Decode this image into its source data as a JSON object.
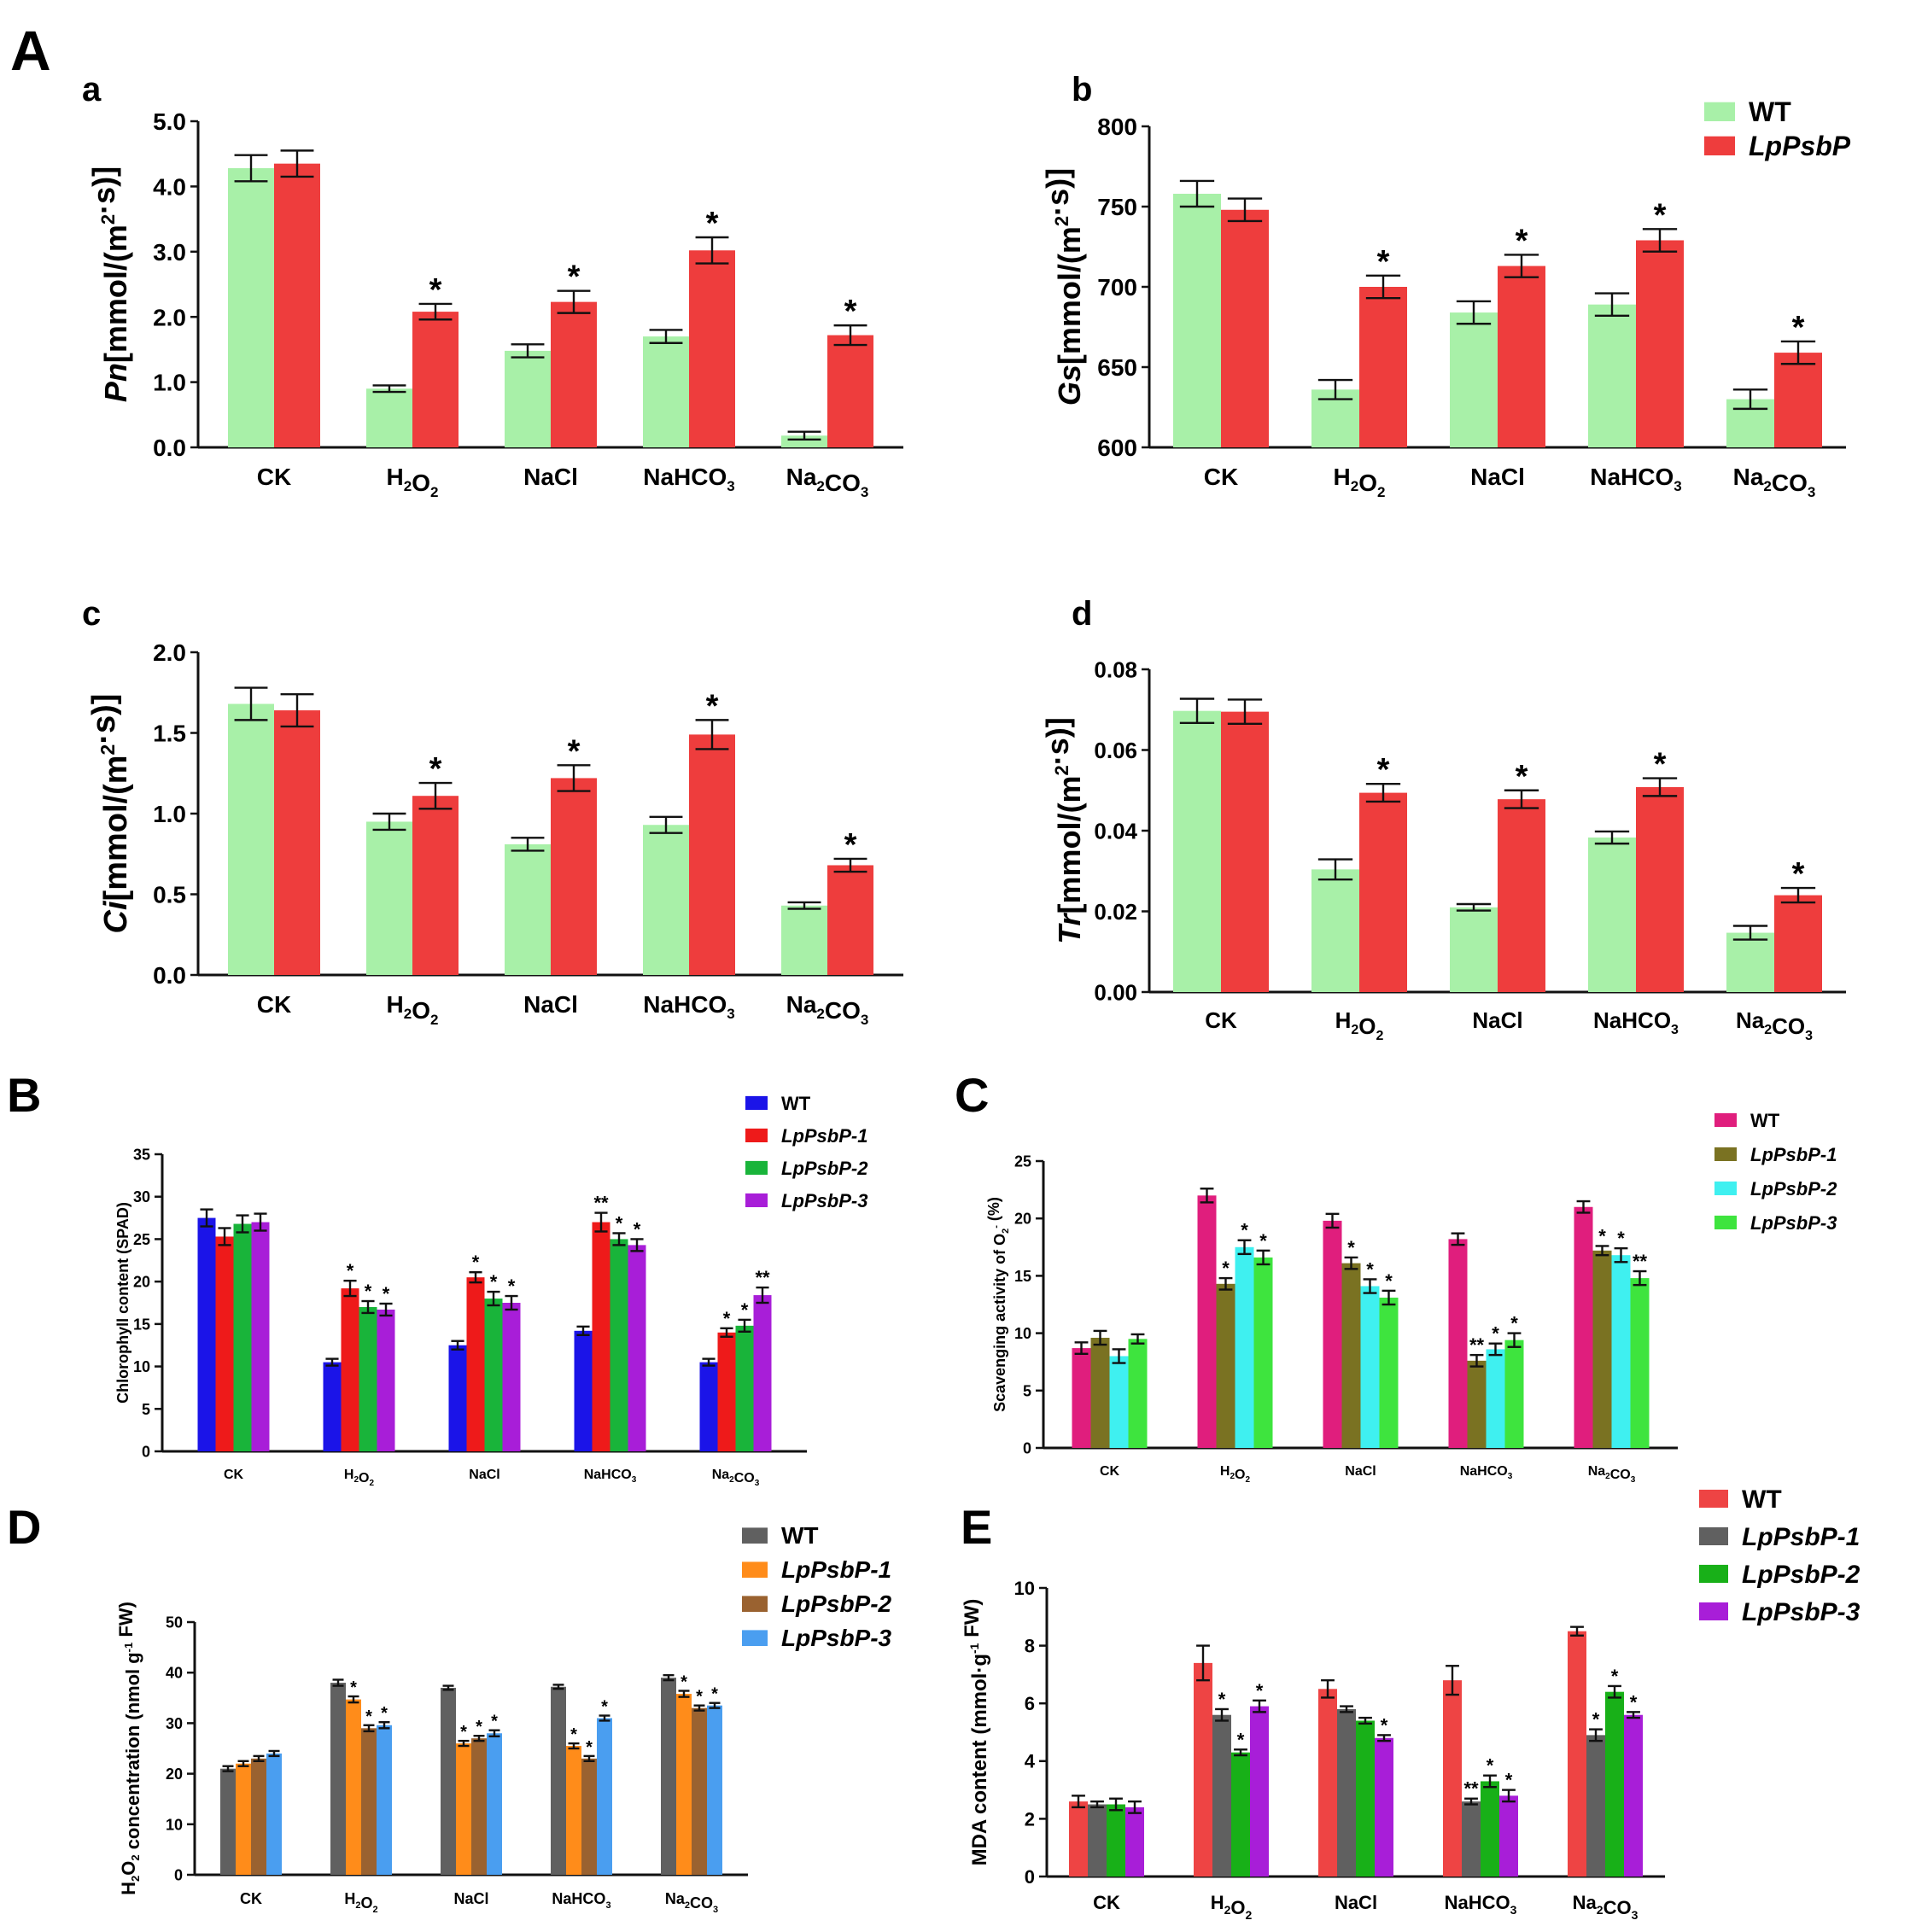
{
  "figure": {
    "label_A": "A",
    "label_B": "B",
    "label_C": "C",
    "label_D": "D",
    "label_E": "E"
  },
  "chart_data": [
    {
      "id": "a",
      "panel": "a",
      "type": "bar",
      "categories": [
        "CK",
        "H2O2",
        "NaCl",
        "NaHCO3",
        "Na2CO3"
      ],
      "ylabel": "Pn[mmol/(m2·s)]",
      "ylim": [
        0,
        5
      ],
      "yticks": [
        "0.0",
        "1.0",
        "2.0",
        "3.0",
        "4.0",
        "5.0"
      ],
      "series": [
        {
          "name": "WT",
          "color": "#a8f0a8",
          "values": [
            4.28,
            0.9,
            1.48,
            1.7,
            0.18
          ],
          "errors": [
            0.2,
            0.05,
            0.1,
            0.1,
            0.06
          ],
          "sig": [
            "",
            "",
            "",
            "",
            ""
          ]
        },
        {
          "name": "LpPsbP",
          "color": "#ee3d3d",
          "values": [
            4.35,
            2.08,
            2.23,
            3.02,
            1.72
          ],
          "errors": [
            0.2,
            0.12,
            0.17,
            0.2,
            0.15
          ],
          "sig": [
            "",
            "*",
            "*",
            "*",
            "*"
          ]
        }
      ]
    },
    {
      "id": "b",
      "panel": "b",
      "type": "bar",
      "categories": [
        "CK",
        "H2O2",
        "NaCl",
        "NaHCO3",
        "Na2CO3"
      ],
      "ylabel": "Gs[mmol/(m2·s)]",
      "ylim": [
        600,
        800
      ],
      "yticks": [
        "600",
        "650",
        "700",
        "750",
        "800"
      ],
      "legend": [
        "WT",
        "LpPsbP"
      ],
      "series": [
        {
          "name": "WT",
          "color": "#a8f0a8",
          "values": [
            758,
            636,
            684,
            689,
            630
          ],
          "errors": [
            8,
            6,
            7,
            7,
            6
          ],
          "sig": [
            "",
            "",
            "",
            "",
            ""
          ]
        },
        {
          "name": "LpPsbP",
          "color": "#ee3d3d",
          "values": [
            748,
            700,
            713,
            729,
            659
          ],
          "errors": [
            7,
            7,
            7,
            7,
            7
          ],
          "sig": [
            "",
            "*",
            "*",
            "*",
            "*"
          ]
        }
      ]
    },
    {
      "id": "c",
      "panel": "c",
      "type": "bar",
      "categories": [
        "CK",
        "H2O2",
        "NaCl",
        "NaHCO3",
        "Na2CO3"
      ],
      "ylabel": "Ci[mmol/(m2·s)]",
      "ylim": [
        0,
        2
      ],
      "yticks": [
        "0.0",
        "0.5",
        "1.0",
        "1.5",
        "2.0"
      ],
      "series": [
        {
          "name": "WT",
          "color": "#a8f0a8",
          "values": [
            1.68,
            0.95,
            0.81,
            0.93,
            0.43
          ],
          "errors": [
            0.1,
            0.05,
            0.04,
            0.05,
            0.02
          ],
          "sig": [
            "",
            "",
            "",
            "",
            ""
          ]
        },
        {
          "name": "LpPsbP",
          "color": "#ee3d3d",
          "values": [
            1.64,
            1.11,
            1.22,
            1.49,
            0.68
          ],
          "errors": [
            0.1,
            0.08,
            0.08,
            0.09,
            0.04
          ],
          "sig": [
            "",
            "*",
            "*",
            "*",
            "*"
          ]
        }
      ]
    },
    {
      "id": "d",
      "panel": "d",
      "type": "bar",
      "categories": [
        "CK",
        "H2O2",
        "NaCl",
        "NaHCO3",
        "Na2CO3"
      ],
      "ylabel": "Tr[mmol/(m2·s)]",
      "ylim": [
        0,
        0.08
      ],
      "yticks": [
        "0.00",
        "0.02",
        "0.04",
        "0.06",
        "0.08"
      ],
      "series": [
        {
          "name": "WT",
          "color": "#a8f0a8",
          "values": [
            0.0697,
            0.0304,
            0.021,
            0.0383,
            0.0147
          ],
          "errors": [
            0.003,
            0.0025,
            0.0008,
            0.0015,
            0.0017
          ],
          "sig": [
            "",
            "",
            "",
            "",
            ""
          ]
        },
        {
          "name": "LpPsbP",
          "color": "#ee3d3d",
          "values": [
            0.0695,
            0.0494,
            0.0478,
            0.0508,
            0.024
          ],
          "errors": [
            0.003,
            0.0022,
            0.0022,
            0.0022,
            0.0018
          ],
          "sig": [
            "",
            "*",
            "*",
            "*",
            "*"
          ]
        }
      ]
    },
    {
      "id": "B",
      "panel": "",
      "type": "bar",
      "categories": [
        "CK",
        "H2O2",
        "NaCl",
        "NaHCO3",
        "Na2CO3"
      ],
      "ylabel": "Chlorophyll content (SPAD)",
      "ylim": [
        0,
        35
      ],
      "yticks": [
        "0",
        "5",
        "10",
        "15",
        "20",
        "25",
        "30",
        "35"
      ],
      "legend": [
        "WT",
        "LpPsbP-1",
        "LpPsbP-2",
        "LpPsbP-3"
      ],
      "series": [
        {
          "name": "WT",
          "color": "#1b14e8",
          "values": [
            27.5,
            10.5,
            12.5,
            14.2,
            10.5
          ],
          "errors": [
            1.0,
            0.4,
            0.5,
            0.5,
            0.4
          ],
          "sig": [
            "",
            "",
            "",
            "",
            ""
          ]
        },
        {
          "name": "LpPsbP-1",
          "color": "#ee1a1a",
          "values": [
            25.3,
            19.2,
            20.5,
            27.0,
            14.0
          ],
          "errors": [
            1.0,
            0.9,
            0.6,
            1.1,
            0.5
          ],
          "sig": [
            "",
            "*",
            "*",
            "**",
            "*"
          ]
        },
        {
          "name": "LpPsbP-2",
          "color": "#19b43a",
          "values": [
            26.8,
            17.0,
            18.0,
            25.0,
            14.8
          ],
          "errors": [
            1.0,
            0.7,
            0.8,
            0.7,
            0.7
          ],
          "sig": [
            "",
            "*",
            "*",
            "*",
            "*"
          ]
        },
        {
          "name": "LpPsbP-3",
          "color": "#a81ed8",
          "values": [
            27.0,
            16.7,
            17.5,
            24.3,
            18.4
          ],
          "errors": [
            1.0,
            0.7,
            0.8,
            0.7,
            0.9
          ],
          "sig": [
            "",
            "*",
            "*",
            "*",
            "**"
          ]
        }
      ]
    },
    {
      "id": "C",
      "panel": "",
      "type": "bar",
      "categories": [
        "CK",
        "H2O2",
        "NaCl",
        "NaHCO3",
        "Na2CO3"
      ],
      "ylabel": "Scavenging activity of O2- (%)",
      "ylim": [
        0,
        25
      ],
      "yticks": [
        "0",
        "5",
        "10",
        "15",
        "20",
        "25"
      ],
      "legend": [
        "WT",
        "LpPsbP-1",
        "LpPsbP-2",
        "LpPsbP-3"
      ],
      "series": [
        {
          "name": "WT",
          "color": "#e01e7d",
          "values": [
            8.7,
            22.0,
            19.8,
            18.2,
            21.0
          ],
          "errors": [
            0.5,
            0.6,
            0.6,
            0.5,
            0.5
          ],
          "sig": [
            "",
            "",
            "",
            "",
            ""
          ]
        },
        {
          "name": "LpPsbP-1",
          "color": "#7a7222",
          "values": [
            9.6,
            14.3,
            16.1,
            7.6,
            17.2
          ],
          "errors": [
            0.6,
            0.5,
            0.5,
            0.5,
            0.4
          ],
          "sig": [
            "",
            "*",
            "*",
            "**",
            "*"
          ]
        },
        {
          "name": "LpPsbP-2",
          "color": "#3ff0f0",
          "values": [
            8.0,
            17.5,
            14.1,
            8.6,
            16.8
          ],
          "errors": [
            0.6,
            0.6,
            0.6,
            0.5,
            0.6
          ],
          "sig": [
            "",
            "*",
            "*",
            "*",
            "*"
          ]
        },
        {
          "name": "LpPsbP-3",
          "color": "#3ee43e",
          "values": [
            9.5,
            16.6,
            13.1,
            9.4,
            14.8
          ],
          "errors": [
            0.4,
            0.6,
            0.6,
            0.6,
            0.6
          ],
          "sig": [
            "",
            "*",
            "*",
            "*",
            "**"
          ]
        }
      ]
    },
    {
      "id": "D",
      "panel": "",
      "type": "bar",
      "categories": [
        "CK",
        "H2O2",
        "NaCl",
        "NaHCO3",
        "Na2CO3"
      ],
      "ylabel": "H2O2 concentration (nmol g-1 FW)",
      "ylim": [
        0,
        50
      ],
      "yticks": [
        "0",
        "10",
        "20",
        "30",
        "40",
        "50"
      ],
      "legend": [
        "WT",
        "LpPsbP-1",
        "LpPsbP-2",
        "LpPsbP-3"
      ],
      "series": [
        {
          "name": "WT",
          "color": "#606060",
          "values": [
            21.0,
            38.0,
            37.0,
            37.2,
            39.0
          ],
          "errors": [
            0.5,
            0.6,
            0.4,
            0.4,
            0.5
          ],
          "sig": [
            "",
            "",
            "",
            "",
            ""
          ]
        },
        {
          "name": "LpPsbP-1",
          "color": "#ff8c1a",
          "values": [
            22.0,
            34.7,
            26.0,
            25.5,
            35.8
          ],
          "errors": [
            0.5,
            0.6,
            0.5,
            0.5,
            0.6
          ],
          "sig": [
            "",
            "*",
            "*",
            "*",
            "*"
          ]
        },
        {
          "name": "LpPsbP-2",
          "color": "#9a6230",
          "values": [
            23.0,
            29.0,
            27.0,
            23.0,
            33.0
          ],
          "errors": [
            0.5,
            0.6,
            0.5,
            0.5,
            0.5
          ],
          "sig": [
            "",
            "*",
            "*",
            "*",
            "*"
          ]
        },
        {
          "name": "LpPsbP-3",
          "color": "#4a9ef0",
          "values": [
            24.0,
            29.6,
            28.0,
            31.0,
            33.5
          ],
          "errors": [
            0.5,
            0.6,
            0.6,
            0.5,
            0.5
          ],
          "sig": [
            "",
            "*",
            "*",
            "*",
            "*"
          ]
        }
      ]
    },
    {
      "id": "E",
      "panel": "",
      "type": "bar",
      "categories": [
        "CK",
        "H2O2",
        "NaCl",
        "NaHCO3",
        "Na2CO3"
      ],
      "ylabel": "MDA content (mmol·g-1 FW)",
      "ylim": [
        0,
        10
      ],
      "yticks": [
        "0",
        "2",
        "4",
        "6",
        "8",
        "10"
      ],
      "legend": [
        "WT",
        "LpPsbP-1",
        "LpPsbP-2",
        "LpPsbP-3"
      ],
      "series": [
        {
          "name": "WT",
          "color": "#ee4444",
          "values": [
            2.6,
            7.4,
            6.5,
            6.8,
            8.5
          ],
          "errors": [
            0.2,
            0.6,
            0.3,
            0.5,
            0.15
          ],
          "sig": [
            "",
            "",
            "",
            "",
            ""
          ]
        },
        {
          "name": "LpPsbP-1",
          "color": "#606060",
          "values": [
            2.5,
            5.6,
            5.8,
            2.6,
            4.9
          ],
          "errors": [
            0.1,
            0.2,
            0.1,
            0.1,
            0.2
          ],
          "sig": [
            "",
            "*",
            "",
            "**",
            "*"
          ]
        },
        {
          "name": "LpPsbP-2",
          "color": "#18b018",
          "values": [
            2.5,
            4.3,
            5.4,
            3.3,
            6.4
          ],
          "errors": [
            0.2,
            0.1,
            0.1,
            0.2,
            0.2
          ],
          "sig": [
            "",
            "*",
            "",
            "*",
            "*"
          ]
        },
        {
          "name": "LpPsbP-3",
          "color": "#a81ed8",
          "values": [
            2.4,
            5.9,
            4.8,
            2.8,
            5.6
          ],
          "errors": [
            0.2,
            0.2,
            0.1,
            0.2,
            0.1
          ],
          "sig": [
            "",
            "*",
            "*",
            "*",
            "*"
          ]
        }
      ]
    }
  ]
}
